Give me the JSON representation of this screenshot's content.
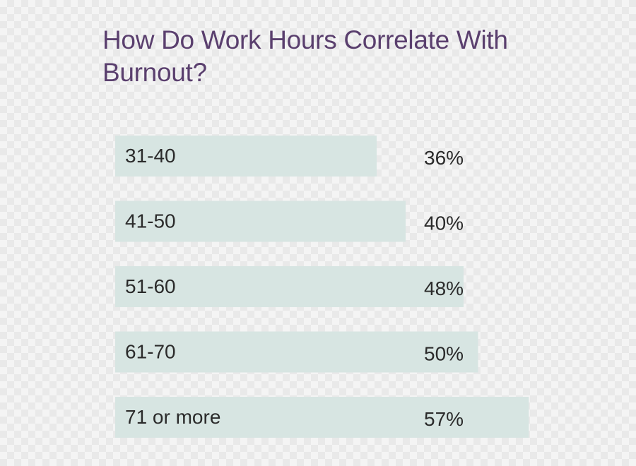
{
  "chart_data": {
    "type": "bar",
    "orientation": "horizontal",
    "title": "How Do Work Hours Correlate With Burnout?",
    "categories": [
      "31-40",
      "41-50",
      "51-60",
      "61-70",
      "71 or more"
    ],
    "values": [
      36,
      40,
      48,
      50,
      57
    ],
    "value_labels": [
      "36%",
      "40%",
      "48%",
      "50%",
      "57%"
    ],
    "xlabel": "",
    "ylabel": "",
    "grid": false,
    "legend": "none"
  },
  "colors": {
    "title": "#5a3f6e",
    "bar": "#d7e5e2",
    "text": "#2b2b2b"
  }
}
